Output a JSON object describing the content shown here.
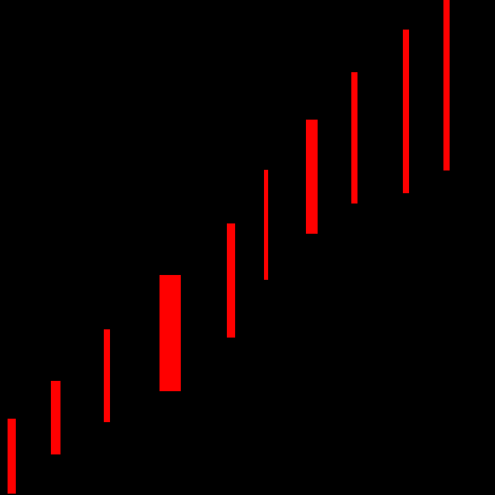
{
  "colors": {
    "background": "#000000",
    "bar": "#ff0000"
  },
  "bar_count": 10
}
